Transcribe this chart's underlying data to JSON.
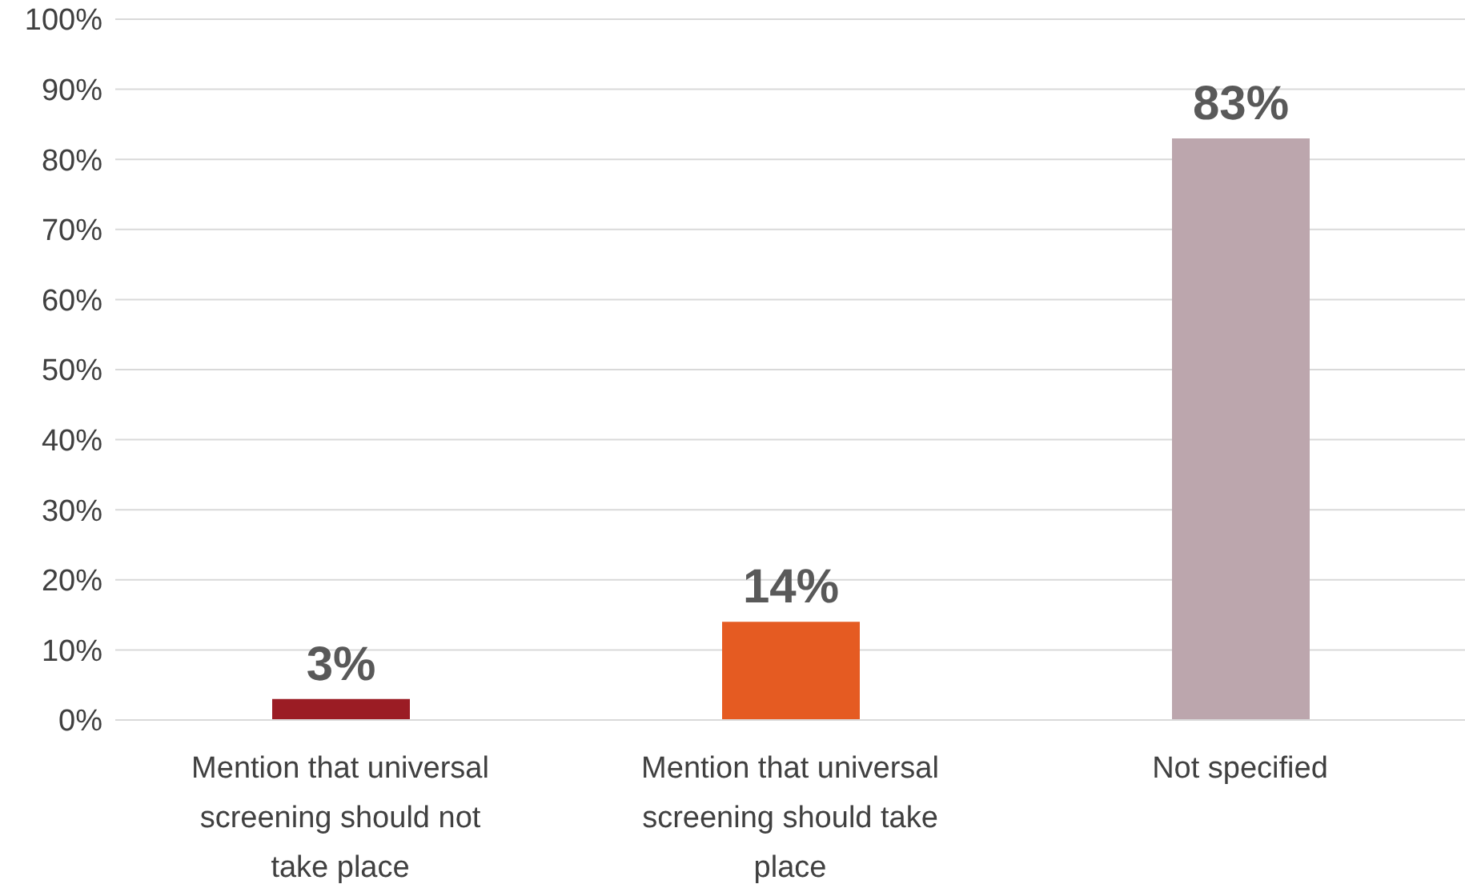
{
  "chart_data": {
    "type": "bar",
    "categories": [
      "Mention that universal screening should not take place",
      "Mention that universal screening should take place",
      "Not specified"
    ],
    "values": [
      3,
      14,
      83
    ],
    "colors": [
      "#9b1c24",
      "#e55b22",
      "#bca6ad"
    ],
    "value_labels": [
      "3%",
      "14%",
      "83%"
    ],
    "ylim": [
      0,
      100
    ],
    "yticks": [
      {
        "value": 0,
        "label": "0%"
      },
      {
        "value": 10,
        "label": "10%"
      },
      {
        "value": 20,
        "label": "20%"
      },
      {
        "value": 30,
        "label": "30%"
      },
      {
        "value": 40,
        "label": "40%"
      },
      {
        "value": 50,
        "label": "50%"
      },
      {
        "value": 60,
        "label": "60%"
      },
      {
        "value": 70,
        "label": "70%"
      },
      {
        "value": 80,
        "label": "80%"
      },
      {
        "value": 90,
        "label": "90%"
      },
      {
        "value": 100,
        "label": "100%"
      }
    ],
    "grid": "y"
  }
}
